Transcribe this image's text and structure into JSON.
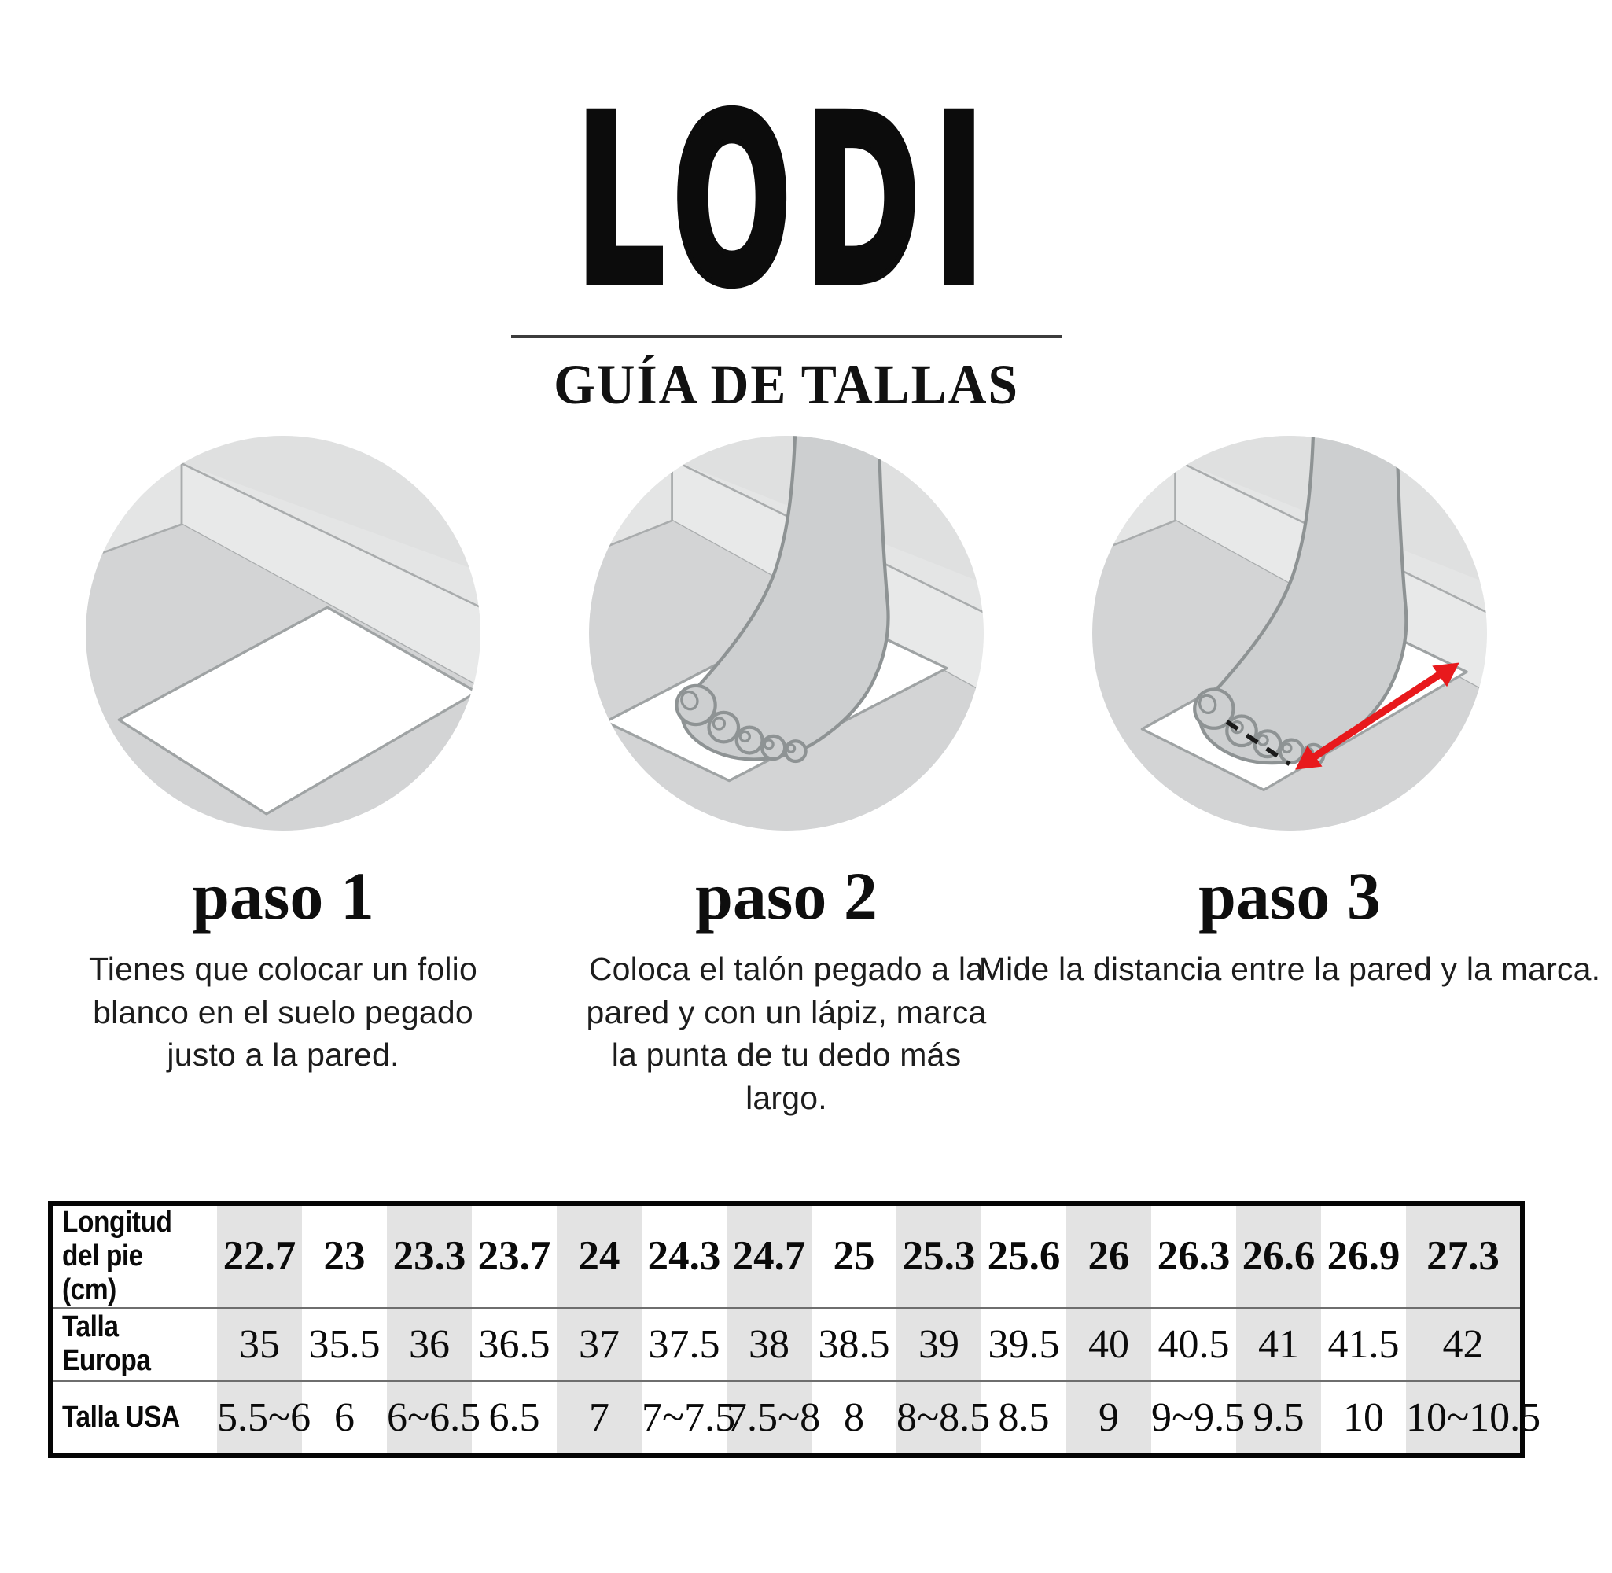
{
  "brand": {
    "logo": "LODI",
    "subtitle": "GUÍA DE TALLAS"
  },
  "steps": [
    {
      "title": "paso 1",
      "description": "Tienes que colocar un folio blanco en el suelo pegado justo a la pared.",
      "illustration": "white-paper-on-floor-against-wall"
    },
    {
      "title": "paso 2",
      "description": "Coloca el talón pegado a la pared y con un lápiz, marca la punta de tu dedo más largo.",
      "illustration": "foot-standing-on-paper-heel-against-wall"
    },
    {
      "title": "paso 3",
      "description": "Mide la distancia entre la pared y la marca.",
      "illustration": "measure-distance-wall-to-mark-red-arrow"
    }
  ],
  "size_table": {
    "rows": [
      {
        "label": "Longitud\ndel pie (cm)",
        "emphasis": "bold",
        "values": [
          "22.7",
          "23",
          "23.3",
          "23.7",
          "24",
          "24.3",
          "24.7",
          "25",
          "25.3",
          "25.6",
          "26",
          "26.3",
          "26.6",
          "26.9",
          "27.3"
        ]
      },
      {
        "label": "Talla Europa",
        "emphasis": "normal",
        "values": [
          "35",
          "35.5",
          "36",
          "36.5",
          "37",
          "37.5",
          "38",
          "38.5",
          "39",
          "39.5",
          "40",
          "40.5",
          "41",
          "41.5",
          "42"
        ]
      },
      {
        "label": "Talla USA",
        "emphasis": "normal",
        "values": [
          "5.5~6",
          "6",
          "6~6.5",
          "6.5",
          "7",
          "7~7.5",
          "7.5~8",
          "8",
          "8~8.5",
          "8.5",
          "9",
          "9~9.5",
          "9.5",
          "10",
          "10~10.5"
        ]
      }
    ],
    "shaded_column_indices": [
      0,
      2,
      4,
      6,
      8,
      10,
      12,
      14
    ],
    "shade_color": "#e3e3e3"
  },
  "colors": {
    "measure_arrow_red": "#e8191c",
    "mark_dash_black": "#1a1a1a"
  }
}
